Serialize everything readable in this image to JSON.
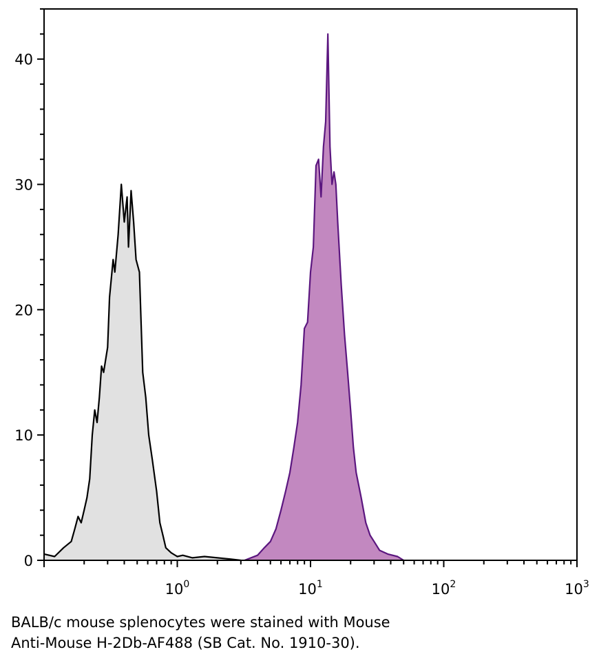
{
  "chart_data": {
    "type": "area",
    "xscale": "log",
    "xlim": [
      0.1,
      1000
    ],
    "ylim": [
      0,
      44
    ],
    "xlabel": "",
    "ylabel": "",
    "title": "",
    "grid": false,
    "x_ticks": [
      {
        "base": "10",
        "exp": "0",
        "value": 1
      },
      {
        "base": "10",
        "exp": "1",
        "value": 10
      },
      {
        "base": "10",
        "exp": "2",
        "value": 100
      },
      {
        "base": "10",
        "exp": "3",
        "value": 1000
      }
    ],
    "y_ticks": [
      0,
      10,
      20,
      30,
      40
    ],
    "series": [
      {
        "fill": "#e1e1e1",
        "stroke": "#000000",
        "points": [
          [
            0.1,
            0.5
          ],
          [
            0.12,
            0.3
          ],
          [
            0.14,
            1.0
          ],
          [
            0.16,
            1.5
          ],
          [
            0.17,
            2.5
          ],
          [
            0.18,
            3.5
          ],
          [
            0.19,
            3.0
          ],
          [
            0.2,
            4.0
          ],
          [
            0.21,
            5.0
          ],
          [
            0.22,
            6.5
          ],
          [
            0.23,
            10.0
          ],
          [
            0.24,
            12.0
          ],
          [
            0.25,
            11.0
          ],
          [
            0.26,
            13.0
          ],
          [
            0.27,
            15.5
          ],
          [
            0.28,
            15.0
          ],
          [
            0.3,
            17.0
          ],
          [
            0.31,
            21.0
          ],
          [
            0.33,
            24.0
          ],
          [
            0.34,
            23.0
          ],
          [
            0.36,
            26.0
          ],
          [
            0.37,
            28.0
          ],
          [
            0.38,
            30.0
          ],
          [
            0.4,
            27.0
          ],
          [
            0.42,
            29.0
          ],
          [
            0.43,
            25.0
          ],
          [
            0.45,
            29.5
          ],
          [
            0.47,
            27.0
          ],
          [
            0.49,
            24.0
          ],
          [
            0.52,
            23.0
          ],
          [
            0.55,
            15.0
          ],
          [
            0.58,
            13.0
          ],
          [
            0.61,
            10.0
          ],
          [
            0.65,
            8.0
          ],
          [
            0.7,
            5.5
          ],
          [
            0.74,
            3.0
          ],
          [
            0.78,
            2.0
          ],
          [
            0.82,
            1.0
          ],
          [
            0.9,
            0.6
          ],
          [
            1.0,
            0.3
          ],
          [
            1.1,
            0.4
          ],
          [
            1.3,
            0.2
          ],
          [
            1.6,
            0.3
          ],
          [
            2.0,
            0.2
          ],
          [
            2.5,
            0.1
          ],
          [
            3.0,
            0.0
          ]
        ]
      },
      {
        "fill": "#c288c0",
        "stroke": "#5b167f",
        "points": [
          [
            3.2,
            0.0
          ],
          [
            4.0,
            0.4
          ],
          [
            4.5,
            1.0
          ],
          [
            5.0,
            1.5
          ],
          [
            5.5,
            2.5
          ],
          [
            6.0,
            4.0
          ],
          [
            6.5,
            5.5
          ],
          [
            7.0,
            7.0
          ],
          [
            7.5,
            9.0
          ],
          [
            8.0,
            11.0
          ],
          [
            8.5,
            14.0
          ],
          [
            9.0,
            18.5
          ],
          [
            9.5,
            19.0
          ],
          [
            10.0,
            23.0
          ],
          [
            10.5,
            25.0
          ],
          [
            11.0,
            31.5
          ],
          [
            11.5,
            32.0
          ],
          [
            12.0,
            29.0
          ],
          [
            12.5,
            33.0
          ],
          [
            13.0,
            35.0
          ],
          [
            13.5,
            42.0
          ],
          [
            14.0,
            33.0
          ],
          [
            14.5,
            30.0
          ],
          [
            15.0,
            31.0
          ],
          [
            15.5,
            30.0
          ],
          [
            16.0,
            27.0
          ],
          [
            17.0,
            22.0
          ],
          [
            18.0,
            18.0
          ],
          [
            19.0,
            15.0
          ],
          [
            20.0,
            12.0
          ],
          [
            21.0,
            9.0
          ],
          [
            22.0,
            7.0
          ],
          [
            24.0,
            5.0
          ],
          [
            26.0,
            3.0
          ],
          [
            28.0,
            2.0
          ],
          [
            30.0,
            1.5
          ],
          [
            33.0,
            0.8
          ],
          [
            38.0,
            0.5
          ],
          [
            45.0,
            0.3
          ],
          [
            50.0,
            0.0
          ]
        ]
      }
    ]
  },
  "caption": {
    "line1": "BALB/c mouse splenocytes were stained with Mouse",
    "line2": "Anti-Mouse H-2Db-AF488 (SB Cat. No. 1910-30)."
  }
}
